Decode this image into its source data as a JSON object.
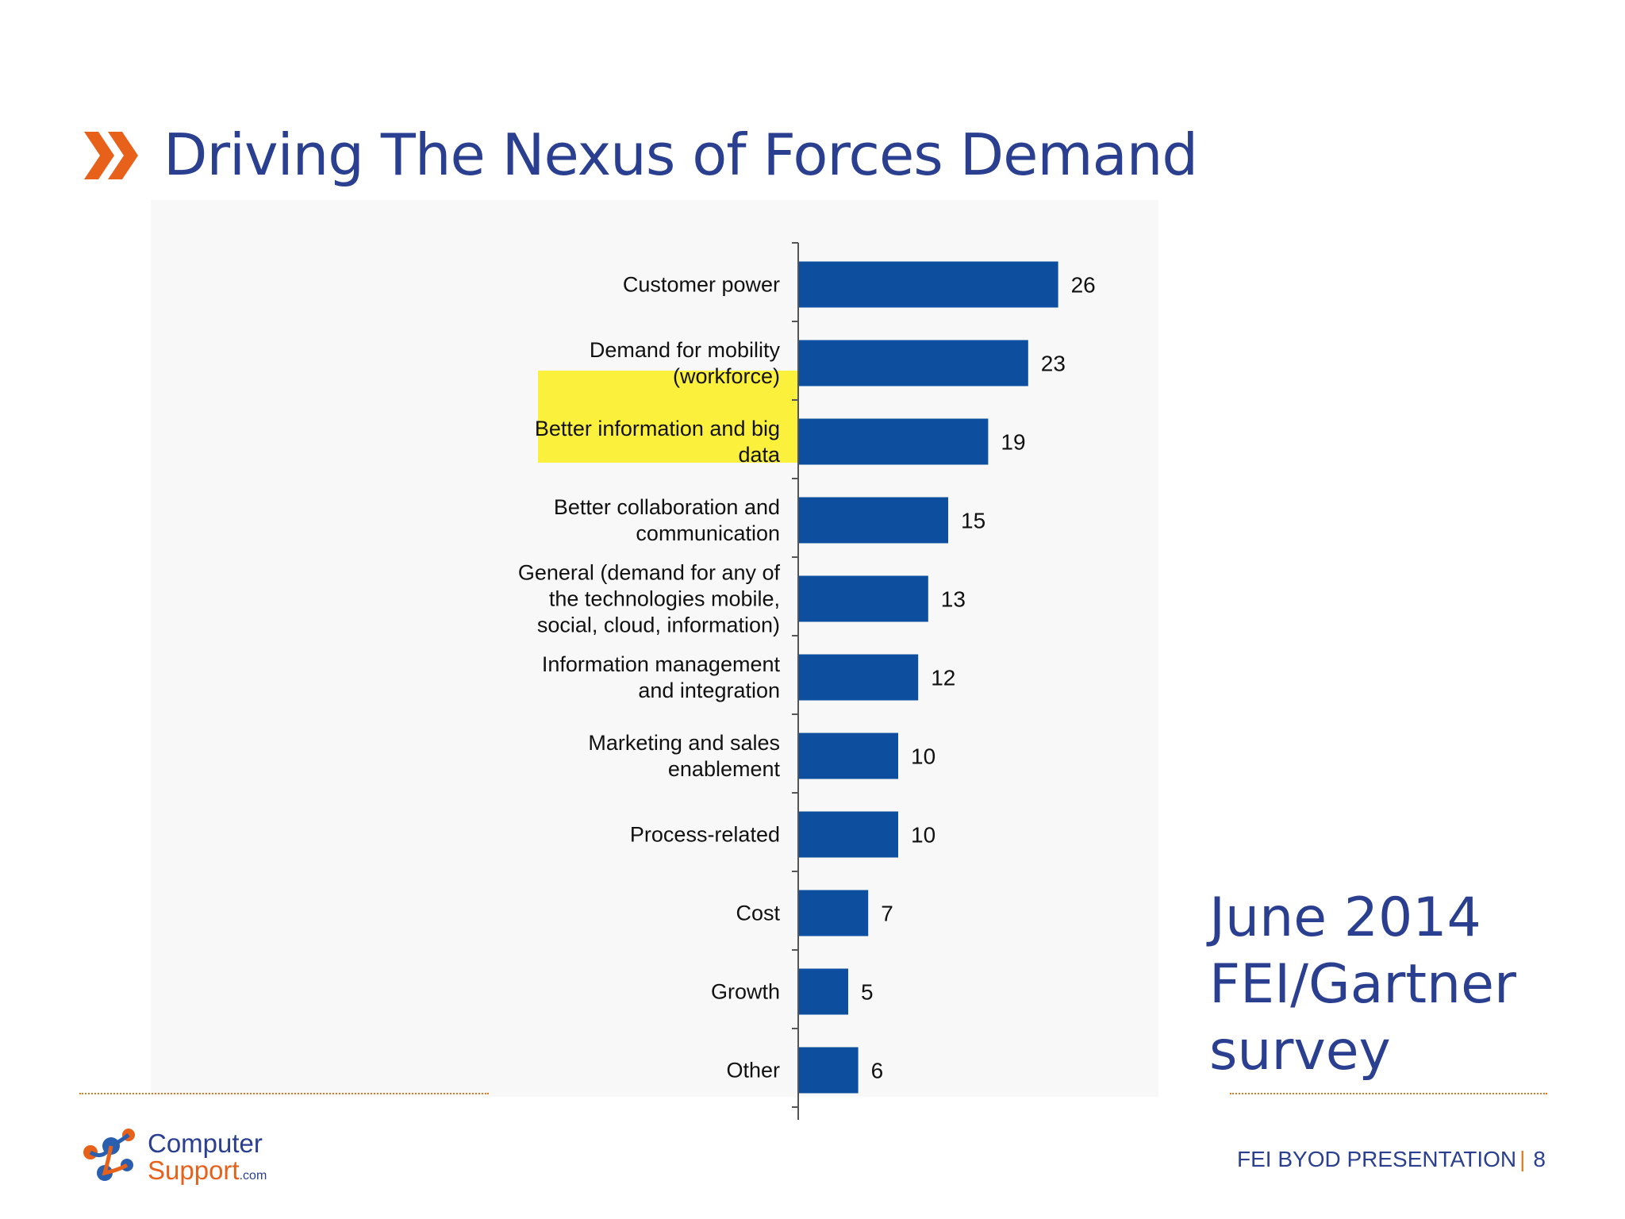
{
  "slide": {
    "title": "Driving The Nexus of Forces Demand",
    "accent_color": "#e8611a",
    "title_color": "#2a3f8f",
    "title_icon": "double-chevron-right-icon"
  },
  "chart_data": {
    "type": "bar",
    "orientation": "horizontal",
    "categories": [
      "Customer power",
      "Demand for mobility\n(workforce)",
      "Better information and big\ndata",
      "Better collaboration and\ncommunication",
      "General (demand for any of\nthe technologies mobile,\nsocial, cloud, information)",
      "Information management\nand integration",
      "Marketing and sales\nenablement",
      "Process-related",
      "Cost",
      "Growth",
      "Other"
    ],
    "values": [
      26,
      23,
      19,
      15,
      13,
      12,
      10,
      10,
      7,
      5,
      6
    ],
    "highlighted_category_index": 1,
    "highlight_color": "#fbf03c",
    "bar_color": "#0d4f9e",
    "grid": false,
    "legend": false
  },
  "note": {
    "text": "June 2014\nFEI/Gartner\nsurvey"
  },
  "logo": {
    "line1": "Computer",
    "line2": "Support",
    "suffix": ".com"
  },
  "footer": {
    "text": "FEI BYOD PRESENTATION",
    "separator": "|",
    "page_number": "8"
  }
}
